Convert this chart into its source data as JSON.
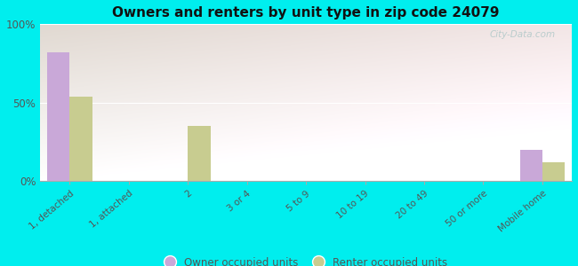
{
  "title": "Owners and renters by unit type in zip code 24079",
  "categories": [
    "1, detached",
    "1, attached",
    "2",
    "3 or 4",
    "5 to 9",
    "10 to 19",
    "20 to 49",
    "50 or more",
    "Mobile home"
  ],
  "owner_values": [
    82,
    0,
    0,
    0,
    0,
    0,
    0,
    0,
    20
  ],
  "renter_values": [
    54,
    0,
    35,
    0,
    0,
    0,
    0,
    0,
    12
  ],
  "owner_color": "#c9a8d8",
  "renter_color": "#c8cc90",
  "outer_bg": "#00eeee",
  "ylim": [
    0,
    100
  ],
  "yticks": [
    0,
    50,
    100
  ],
  "ytick_labels": [
    "0%",
    "50%",
    "100%"
  ],
  "bar_width": 0.38,
  "watermark": "City-Data.com",
  "legend_owner": "Owner occupied units",
  "legend_renter": "Renter occupied units",
  "grad_top_left": "#c8e8c0",
  "grad_top_right": "#e8f8e8",
  "grad_bottom": "#f8fff8"
}
